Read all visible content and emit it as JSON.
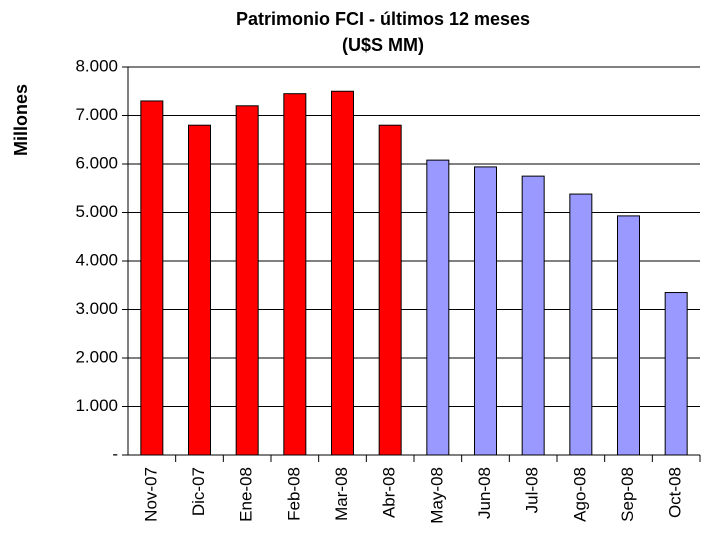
{
  "chart_data": {
    "type": "bar",
    "title": "Patrimonio FCI - últimos 12 meses",
    "subtitle": "(U$S MM)",
    "y_label": "Millones",
    "categories": [
      "Nov-07",
      "Dic-07",
      "Ene-08",
      "Feb-08",
      "Mar-08",
      "Abr-08",
      "May-08",
      "Jun-08",
      "Jul-08",
      "Ago-08",
      "Sep-08",
      "Oct-08"
    ],
    "values": [
      7300,
      6800,
      7200,
      7450,
      7500,
      6800,
      6080,
      5940,
      5750,
      5380,
      4930,
      3350
    ],
    "colors": [
      "#ff0000",
      "#ff0000",
      "#ff0000",
      "#ff0000",
      "#ff0000",
      "#ff0000",
      "#9999ff",
      "#9999ff",
      "#9999ff",
      "#9999ff",
      "#9999ff",
      "#9999ff"
    ],
    "ylim": [
      0,
      8000
    ],
    "yticks": [
      {
        "value": 0,
        "label": "-"
      },
      {
        "value": 1000,
        "label": "1.000"
      },
      {
        "value": 2000,
        "label": "2.000"
      },
      {
        "value": 3000,
        "label": "3.000"
      },
      {
        "value": 4000,
        "label": "4.000"
      },
      {
        "value": 5000,
        "label": "5.000"
      },
      {
        "value": 6000,
        "label": "6.000"
      },
      {
        "value": 7000,
        "label": "7.000"
      },
      {
        "value": 8000,
        "label": "8.000"
      }
    ],
    "grid": true
  }
}
